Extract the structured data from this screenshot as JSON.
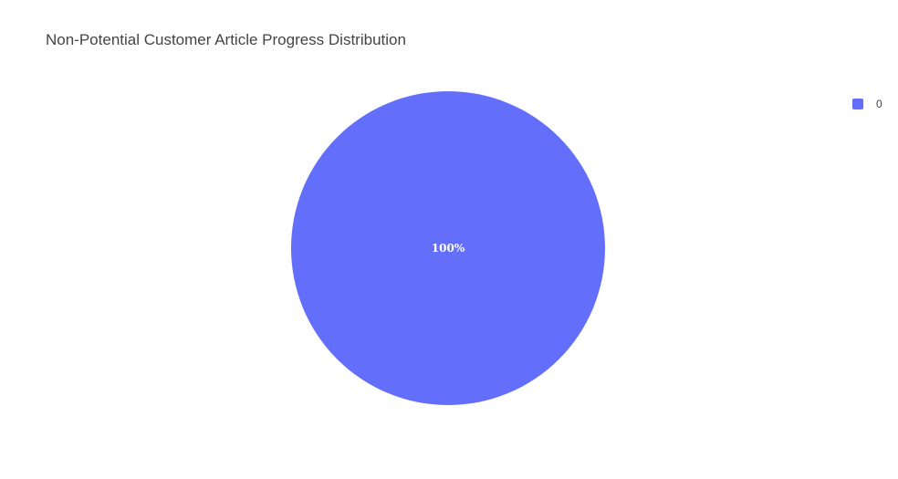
{
  "chart_data": {
    "type": "pie",
    "title": "Non-Potential Customer Article Progress Distribution",
    "labels": [
      "0"
    ],
    "values": [
      100
    ],
    "text_labels": [
      "100%"
    ],
    "colors": [
      "#636efa"
    ],
    "legend_position": "top-right"
  }
}
